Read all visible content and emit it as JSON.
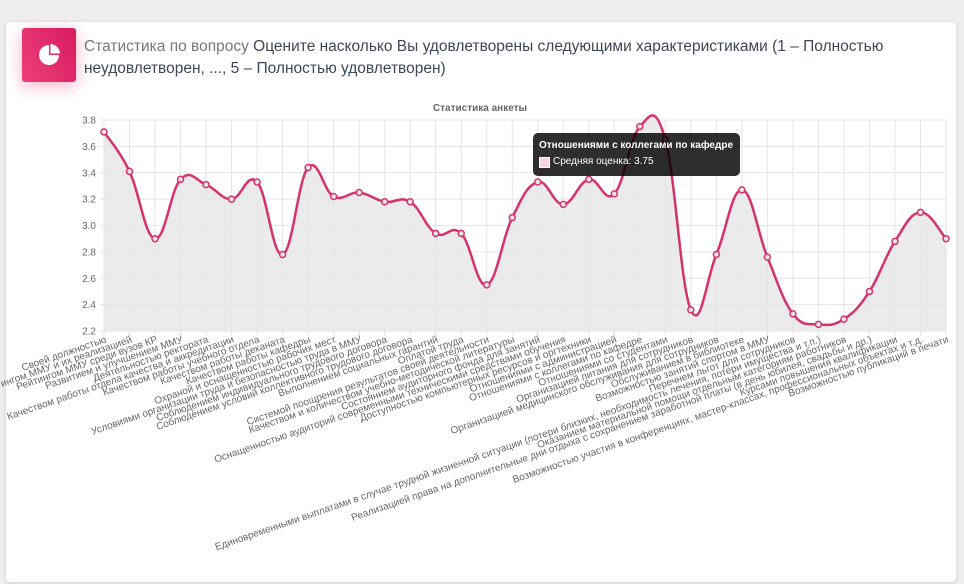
{
  "header": {
    "prefix": "Статистика по вопросу",
    "question": "Оцените насколько Вы удовлетворены следующими характеристиками (1 – Полностью неудовлетворен, ..., 5 – Полностью удовлетворен)",
    "icon": "pie-chart-icon"
  },
  "colors": {
    "accent": "#e91e63",
    "line": "#d6336c",
    "fill": "#e6e6e6",
    "grid": "#e5e5e5"
  },
  "tooltip": {
    "title": "Отношениями с коллегами по кафедре",
    "label": "Средняя оценка: 3.75"
  },
  "chart_data": {
    "type": "line",
    "title": "Статистика анкеты",
    "xlabel": "",
    "ylabel": "",
    "ylim": [
      2.2,
      3.8
    ],
    "yticks": [
      "3.8",
      "3.6",
      "3.4",
      "3.2",
      "3.0",
      "2.8",
      "2.6",
      "2.4",
      "2.2"
    ],
    "grid": true,
    "fill": true,
    "categories": [
      "Своей должностью",
      "Рейтингом ММУ и их реализацией",
      "Рейтингом ММУ среди вузов КР",
      "Развитием и улучшением ММУ",
      "Деятельностью ректората",
      "Качеством работы отдела качества и аккредитации",
      "Качеством работы учебного отдела",
      "Качеством работы деканата",
      "Качеством работы кафедры",
      "Охраной и оснащенностью рабочих мест",
      "Условиями организации труда и безопасностью труда в ММУ",
      "Соблюдением индивидуального трудового договора",
      "Соблюдением условий коллективного трудового договора",
      "Выполнением социальных гарантий",
      "Оплатой труда",
      "Системой поощрения результатов своей деятельности",
      "Качеством и количеством учебно-методической литературы",
      "Состоянием аудиторного фонда для занятий",
      "Оснащенностью аудиторий современными техническими средствами обучения",
      "Доступностью компьютерных ресурсов и оргтехники",
      "Отношениями с администрацией",
      "Отношениями с коллегами по кафедре",
      "Отношениями со студентами",
      "Организацией питания для сотрудников",
      "Организацией медицинского обслуживания для сотрудников",
      "Обслуживанием в библиотеке",
      "Возможностью занятий спортом в ММУ",
      "Перечнем льгот для сотрудников",
      "Единовременными выплатами в случае трудной жизненной ситуации (потери близких, необходимость лечения, потери имущества и т.п.)",
      "Оказанием материальной помощи отдельным категориям работников",
      "Реализацией права на дополнительные дни отдыха с сохранением заработной платы (в день юбилея, свадьбы и др.)",
      "Курсами повышения квалификации",
      "Возможностью участия в конференциях, мастер-классах, профессиональных объектах и т.д.",
      "Возможностью публикаций в печати"
    ],
    "series": [
      {
        "values": [
          3.71,
          3.41,
          2.9,
          3.35,
          3.31,
          3.2,
          3.33,
          2.78,
          3.44,
          3.22,
          3.25,
          3.18,
          3.18,
          2.94,
          2.94,
          2.55,
          3.06,
          3.33,
          3.16,
          3.35,
          3.24,
          3.75,
          3.65,
          2.36,
          2.78,
          3.27,
          2.76,
          2.33,
          2.25,
          2.29,
          2.5,
          2.88,
          3.1,
          2.9
        ]
      }
    ]
  }
}
